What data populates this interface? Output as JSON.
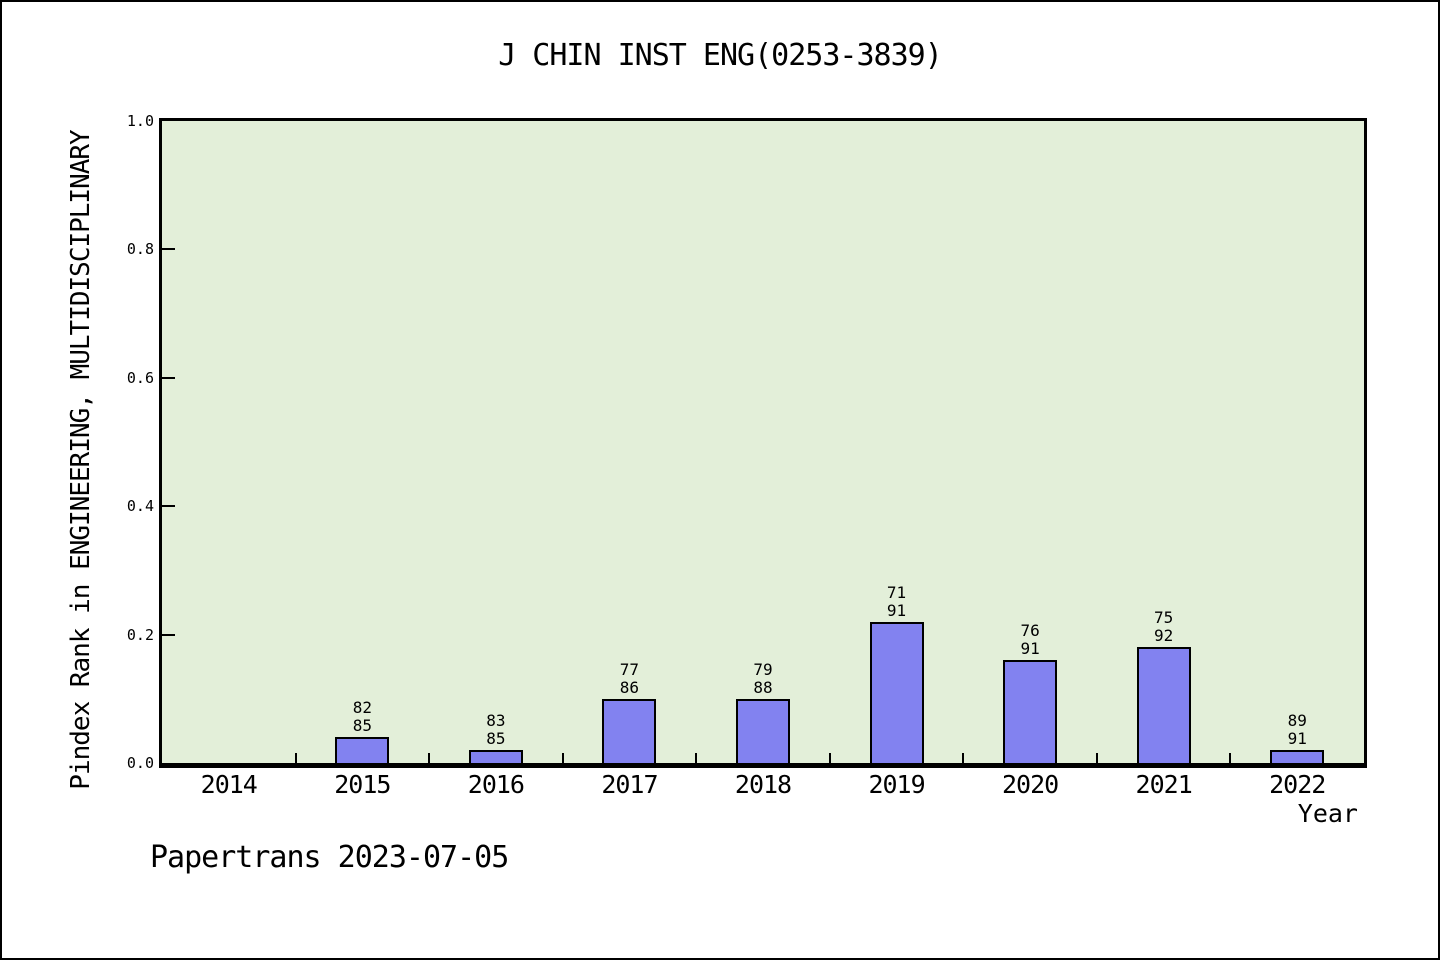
{
  "chart_data": {
    "type": "bar",
    "title": "J CHIN INST ENG(0253-3839)",
    "xlabel": "Year",
    "ylabel": "Pindex Rank in ENGINEERING, MULTIDISCIPLINARY",
    "ylim": [
      0.0,
      1.0
    ],
    "ytick_values": [
      0.0,
      0.2,
      0.4,
      0.6,
      0.8,
      1.0
    ],
    "ytick_labels": [
      "0.0",
      "0.2",
      "0.4",
      "0.6",
      "0.8",
      "1.0"
    ],
    "categories": [
      "2014",
      "2015",
      "2016",
      "2017",
      "2018",
      "2019",
      "2020",
      "2021",
      "2022"
    ],
    "values": [
      0,
      0.04,
      0.02,
      0.1,
      0.1,
      0.22,
      0.16,
      0.18,
      0.02
    ],
    "bar_labels": [
      [],
      [
        "82",
        "85"
      ],
      [
        "83",
        "85"
      ],
      [
        "77",
        "86"
      ],
      [
        "79",
        "88"
      ],
      [
        "71",
        "91"
      ],
      [
        "76",
        "91"
      ],
      [
        "75",
        "92"
      ],
      [
        "89",
        "91"
      ]
    ],
    "grid": false,
    "legend_position": "none",
    "colors": {
      "bar_fill": "#8282f0",
      "bar_edge": "#000000",
      "plot_background": "#e3efd9",
      "figure_background": "#ffffff",
      "text": "#000000"
    }
  },
  "footer": {
    "label": "Papertrans 2023-07-05"
  }
}
